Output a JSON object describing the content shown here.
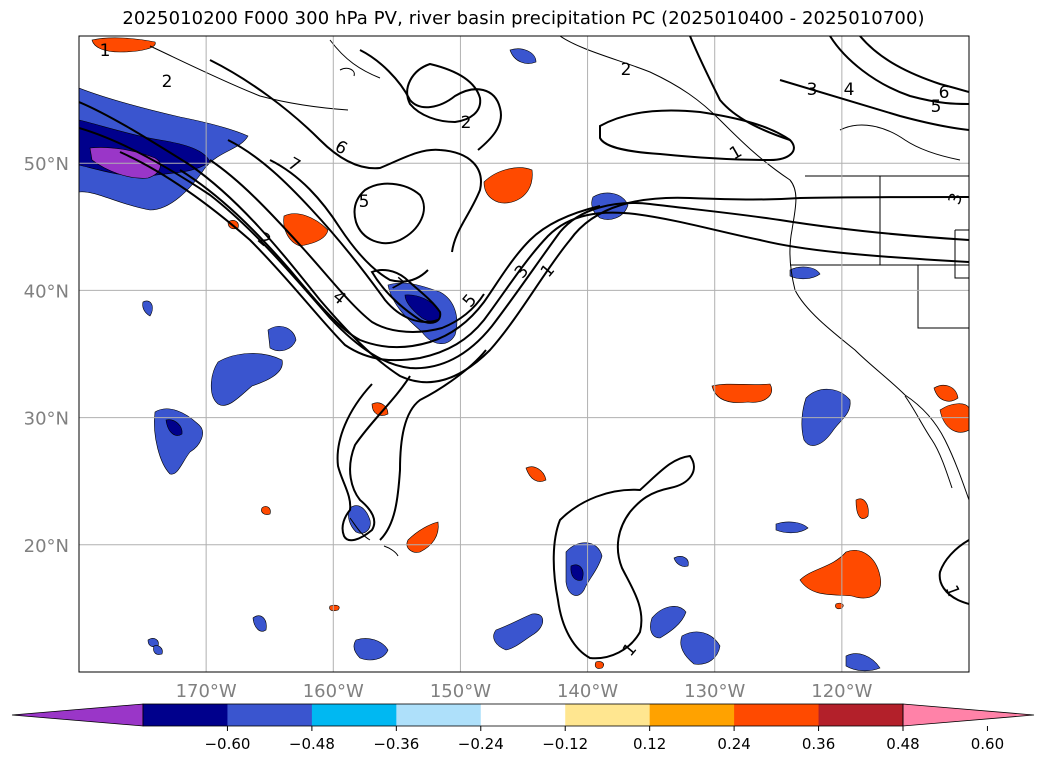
{
  "title": "2025010200 F000 300 hPa PV, river basin precipitation PC (2025010400 - 2025010700)",
  "map": {
    "extent": {
      "lon": [
        -180,
        -110
      ],
      "lat": [
        10,
        60
      ]
    },
    "lat_labels": [
      "50°N",
      "40°N",
      "30°N",
      "20°N"
    ],
    "lat_values": [
      50,
      40,
      30,
      20
    ],
    "lon_labels": [
      "170°W",
      "160°W",
      "150°W",
      "140°W",
      "130°W",
      "120°W"
    ],
    "lon_values": [
      -170,
      -160,
      -150,
      -140,
      -130,
      -120
    ],
    "grid": true,
    "contour_field": "300 hPa PV",
    "contour_labels": [
      "1",
      "2",
      "2",
      "2",
      "6",
      "5",
      "4",
      "3",
      "6",
      "5",
      "7",
      "5",
      "7",
      "4",
      "2",
      "3",
      "1",
      "1",
      "1",
      "1",
      "3"
    ]
  },
  "colorbar": {
    "extend": "both",
    "tick_labels": [
      "-0.60",
      "-0.48",
      "-0.36",
      "-0.24",
      "-0.12",
      "0.12",
      "0.24",
      "0.36",
      "0.48",
      "0.60"
    ],
    "colors": [
      "#9a36c8",
      "#00008c",
      "#3a55cf",
      "#00b8f2",
      "#aee0fa",
      "#ffffff",
      "#ffe690",
      "#ffa200",
      "#ff4a00",
      "#b3202a",
      "#ff82a8"
    ],
    "boundaries": [
      -0.6,
      -0.48,
      -0.36,
      -0.24,
      -0.12,
      0.12,
      0.24,
      0.36,
      0.48,
      0.6
    ]
  },
  "colors": {
    "grid": "#b0b0b0",
    "axis_label": "#808080",
    "contour": "#000000"
  }
}
